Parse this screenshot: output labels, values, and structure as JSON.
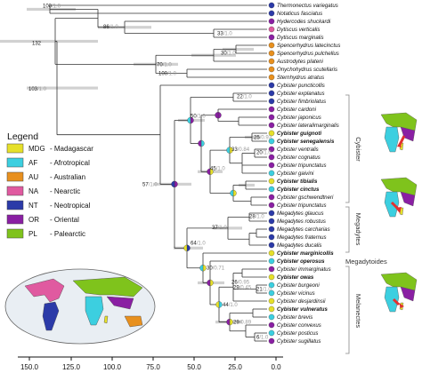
{
  "taxa": [
    {
      "name": "Thermonectus variegatus",
      "color": "#2b3aa8",
      "bold": false
    },
    {
      "name": "Notaticus fasciatus",
      "color": "#2b3aa8",
      "bold": false
    },
    {
      "name": "Hydercodes shuckardi",
      "color": "#8a1fa3",
      "bold": false
    },
    {
      "name": "Dytiscus verticalis",
      "color": "#e05aa0",
      "bold": false
    },
    {
      "name": "Dytiscus marginalis",
      "color": "#8a1fa3",
      "bold": false
    },
    {
      "name": "Spencerhydrus latecinctus",
      "color": "#e8901e",
      "bold": false
    },
    {
      "name": "Spencerhydrus pulchellus",
      "color": "#e8901e",
      "bold": false
    },
    {
      "name": "Austrodytes plateni",
      "color": "#e8901e",
      "bold": false
    },
    {
      "name": "Onychohydrus scutellaris",
      "color": "#e8901e",
      "bold": false
    },
    {
      "name": "Sternhydrus atratus",
      "color": "#e8901e",
      "bold": false
    },
    {
      "name": "Cybister puncticollis",
      "color": "#2b3aa8",
      "bold": false
    },
    {
      "name": "Cybister explanatus",
      "color": "#2b3aa8",
      "bold": false
    },
    {
      "name": "Cybister fimbriolatus",
      "color": "#2b3aa8",
      "bold": false
    },
    {
      "name": "Cybister cardoni",
      "color": "#8a1fa3",
      "bold": false
    },
    {
      "name": "Cybister japonicus",
      "color": "#8a1fa3",
      "bold": false
    },
    {
      "name": "Cybister lateralimarginalis",
      "color": "#8a1fa3",
      "bold": false
    },
    {
      "name": "Cybister guignoti",
      "color": "#e6e02a",
      "bold": true
    },
    {
      "name": "Cybister senegalensis",
      "color": "#3ccfe0",
      "bold": true
    },
    {
      "name": "Cybister ventralis",
      "color": "#8a1fa3",
      "bold": false
    },
    {
      "name": "Cybister cognatus",
      "color": "#8a1fa3",
      "bold": false
    },
    {
      "name": "Cybister tripunctatus",
      "color": "#8a1fa3",
      "bold": false
    },
    {
      "name": "Cybister gaivini",
      "color": "#3ccfe0",
      "bold": false
    },
    {
      "name": "Cybister tibialis",
      "color": "#e6e02a",
      "bold": true
    },
    {
      "name": "Cybister cinctus",
      "color": "#3ccfe0",
      "bold": true
    },
    {
      "name": "Cybister gschwendtneri",
      "color": "#8a1fa3",
      "bold": false
    },
    {
      "name": "Cybister tripunctatus",
      "color": "#8a1fa3",
      "bold": false
    },
    {
      "name": "Megadytes glaucus",
      "color": "#2b3aa8",
      "bold": false
    },
    {
      "name": "Megadytes robustus",
      "color": "#2b3aa8",
      "bold": false
    },
    {
      "name": "Megadytes carcharias",
      "color": "#2b3aa8",
      "bold": false
    },
    {
      "name": "Megadytes fraternus",
      "color": "#2b3aa8",
      "bold": false
    },
    {
      "name": "Megadytes ducalis",
      "color": "#2b3aa8",
      "bold": false
    },
    {
      "name": "Cybister marginicollis",
      "color": "#e6e02a",
      "bold": true
    },
    {
      "name": "Cybister operosus",
      "color": "#3ccfe0",
      "bold": true
    },
    {
      "name": "Cybister immarginatus",
      "color": "#8a1fa3",
      "bold": false
    },
    {
      "name": "Cybister owas",
      "color": "#e6e02a",
      "bold": true
    },
    {
      "name": "Cybister burgeoni",
      "color": "#3ccfe0",
      "bold": false
    },
    {
      "name": "Cybister vicinus",
      "color": "#3ccfe0",
      "bold": false
    },
    {
      "name": "Cybister desjardinsii",
      "color": "#e6e02a",
      "bold": false
    },
    {
      "name": "Cybister vulneratus",
      "color": "#e6e02a",
      "bold": true
    },
    {
      "name": "Cybister brevis",
      "color": "#3ccfe0",
      "bold": false
    },
    {
      "name": "Cybister convexus",
      "color": "#8a1fa3",
      "bold": false
    },
    {
      "name": "Cybister posticus",
      "color": "#3ccfe0",
      "bold": false
    },
    {
      "name": "Cybister sugillatus",
      "color": "#8a1fa3",
      "bold": false
    }
  ],
  "node_labels": [
    {
      "main": "100",
      "support": "/1.0"
    },
    {
      "main": "86",
      "support": "/1.0"
    },
    {
      "main": "33",
      "support": "/1.0"
    },
    {
      "main": "30",
      "support": "/1.0"
    },
    {
      "main": "70",
      "support": "/1.0"
    },
    {
      "main": "100",
      "support": "/1.0"
    },
    {
      "main": "132",
      "support": ""
    },
    {
      "main": "103",
      "support": "/1.0"
    },
    {
      "main": "22",
      "support": "/1.0"
    },
    {
      "main": "25",
      "support": "/0.93"
    },
    {
      "main": "50",
      "support": "/1.0"
    },
    {
      "main": "45",
      "support": "/1.0"
    },
    {
      "main": "33",
      "support": "/0.84"
    },
    {
      "main": "20",
      "support": "/1.0"
    },
    {
      "main": "57",
      "support": "/1.0"
    },
    {
      "main": "28",
      "support": "/1.0"
    },
    {
      "main": "37",
      "support": "/1.0"
    },
    {
      "main": "64",
      "support": "/1.0"
    },
    {
      "main": "26",
      "support": "/0.95"
    },
    {
      "main": "44",
      "support": "/1.0"
    },
    {
      "main": "29",
      "support": "/0.45"
    },
    {
      "main": "21",
      "support": "/1.0"
    },
    {
      "main": "30",
      "support": "/0.71"
    },
    {
      "main": "29",
      "support": "/0.89"
    },
    {
      "main": "6",
      "support": "/1.0"
    }
  ],
  "axis": {
    "ticks": [
      "150.0",
      "125.0",
      "100.0",
      "75.0",
      "50.0",
      "25.0",
      "0.0"
    ]
  },
  "groups": {
    "cybister": "Cybister",
    "megadytes": "Megadytes",
    "megadytoides": "Megadytoides",
    "melanectes": "Melanectes"
  },
  "legend": {
    "title": "Legend",
    "items": [
      {
        "code": "MDG",
        "label": "- Madagascar",
        "color": "#e6e02a"
      },
      {
        "code": "AF",
        "label": "- Afrotropical",
        "color": "#3ccfe0"
      },
      {
        "code": "AU",
        "label": "- Australian",
        "color": "#e8901e"
      },
      {
        "code": "NA",
        "label": "- Nearctic",
        "color": "#e05aa0"
      },
      {
        "code": "NT",
        "label": "- Neotropical",
        "color": "#2b3aa8"
      },
      {
        "code": "OR",
        "label": "- Oriental",
        "color": "#8a1fa3"
      },
      {
        "code": "PL",
        "label": "- Palearctic",
        "color": "#7fc31c"
      }
    ]
  }
}
